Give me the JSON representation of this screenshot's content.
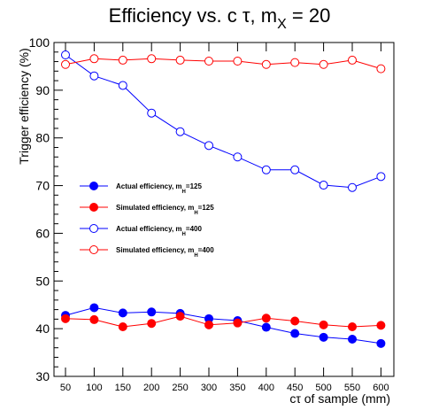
{
  "chart_data": {
    "type": "line",
    "title": {
      "main": "Efficiency vs. c τ, m",
      "subscript": "X",
      "suffix": " = 20"
    },
    "xlabel": "cτ of sample (mm)",
    "ylabel": "Trigger efficiency (%)",
    "x": [
      50,
      100,
      150,
      200,
      250,
      300,
      350,
      400,
      450,
      500,
      550,
      600
    ],
    "x_tick_labels": [
      "50",
      "100",
      "150",
      "200",
      "250",
      "300",
      "350",
      "400",
      "450",
      "500",
      "550",
      "600"
    ],
    "y_tick_labels": [
      "30",
      "40",
      "50",
      "60",
      "70",
      "80",
      "90",
      "100"
    ],
    "ylim": [
      30,
      100
    ],
    "grid": false,
    "legend_position": "center-left",
    "series": [
      {
        "name": "Actual efficiency, m",
        "name_sub": "H",
        "name_tail": "=125",
        "color": "#0000ff",
        "marker": "filled-circle",
        "values": [
          42.8,
          44.4,
          43.3,
          43.5,
          43.2,
          42.1,
          41.7,
          40.3,
          39.0,
          38.2,
          37.8,
          36.9
        ]
      },
      {
        "name": "Simulated efficiency, m",
        "name_sub": "H",
        "name_tail": "=125",
        "color": "#ff0000",
        "marker": "filled-circle",
        "values": [
          42.1,
          41.9,
          40.4,
          41.1,
          42.6,
          40.8,
          41.2,
          42.2,
          41.6,
          40.8,
          40.4,
          40.7
        ]
      },
      {
        "name": "Actual efficiency, m",
        "name_sub": "H",
        "name_tail": "=400",
        "color": "#0000ff",
        "marker": "open-circle",
        "values": [
          97.4,
          93.0,
          91.0,
          85.2,
          81.3,
          78.4,
          76.0,
          73.3,
          73.3,
          70.1,
          69.6,
          71.9
        ]
      },
      {
        "name": "Simulated efficiency, m",
        "name_sub": "H",
        "name_tail": "=400",
        "color": "#ff0000",
        "marker": "open-circle",
        "values": [
          95.4,
          96.6,
          96.3,
          96.6,
          96.3,
          96.1,
          96.1,
          95.4,
          95.8,
          95.4,
          96.3,
          94.5
        ]
      }
    ]
  }
}
